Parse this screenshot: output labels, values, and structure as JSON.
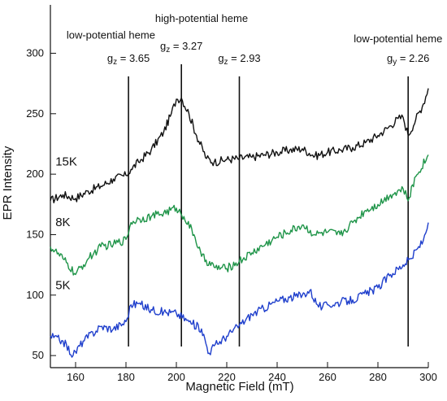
{
  "chart_data": {
    "type": "line",
    "xlabel": "Magnetic Field (mT)",
    "ylabel": "EPR Intensity",
    "xlim": [
      150,
      300
    ],
    "ylim": [
      40,
      340
    ],
    "xticks": [
      160,
      180,
      200,
      220,
      240,
      260,
      280,
      300
    ],
    "yticks": [
      50,
      100,
      150,
      200,
      250,
      300
    ],
    "grid": false,
    "legend": "none",
    "series": [
      {
        "name": "15K",
        "color": "#111111",
        "x": [
          150,
          155,
          160,
          165,
          170,
          175,
          180,
          182,
          185,
          190,
          195,
          198,
          200,
          202,
          205,
          208,
          212,
          215,
          220,
          225,
          230,
          235,
          240,
          245,
          250,
          255,
          260,
          265,
          270,
          275,
          280,
          285,
          288,
          290,
          292,
          295,
          298,
          300
        ],
        "y": [
          178,
          183,
          180,
          186,
          190,
          196,
          199,
          204,
          210,
          220,
          235,
          250,
          262,
          263,
          250,
          232,
          213,
          210,
          212,
          213,
          214,
          216,
          218,
          220,
          221,
          215,
          218,
          220,
          222,
          226,
          232,
          240,
          246,
          247,
          232,
          245,
          258,
          271
        ]
      },
      {
        "name": "8K",
        "color": "#1e9448",
        "x": [
          150,
          155,
          160,
          165,
          170,
          175,
          180,
          182,
          185,
          190,
          195,
          200,
          203,
          207,
          210,
          215,
          220,
          225,
          230,
          240,
          250,
          255,
          260,
          265,
          270,
          275,
          280,
          285,
          290,
          292,
          295,
          300
        ],
        "y": [
          140,
          130,
          117,
          130,
          140,
          142,
          146,
          160,
          163,
          165,
          168,
          172,
          165,
          150,
          132,
          123,
          122,
          128,
          135,
          148,
          158,
          150,
          152,
          150,
          160,
          170,
          175,
          183,
          188,
          178,
          198,
          216
        ]
      },
      {
        "name": "5K",
        "color": "#1f3fcc",
        "x": [
          150,
          155,
          159,
          163,
          170,
          175,
          180,
          182,
          185,
          190,
          195,
          200,
          205,
          210,
          213,
          215,
          220,
          225,
          230,
          240,
          245,
          250,
          253,
          256,
          258,
          260,
          270,
          280,
          285,
          290,
          293,
          298,
          300
        ],
        "y": [
          66,
          62,
          50,
          62,
          74,
          72,
          78,
          92,
          93,
          88,
          86,
          85,
          78,
          72,
          52,
          58,
          66,
          75,
          84,
          95,
          98,
          100,
          104,
          92,
          90,
          92,
          96,
          106,
          117,
          125,
          130,
          145,
          160
        ]
      }
    ],
    "series_labels": [
      {
        "text": "15K",
        "x": 152,
        "y": 207
      },
      {
        "text": "8K",
        "x": 152,
        "y": 157
      },
      {
        "text": "5K",
        "x": 152,
        "y": 105
      }
    ],
    "markers": [
      {
        "x": 181,
        "label": "g",
        "sub": "z",
        "value": " = 3.65",
        "label_y": 293
      },
      {
        "x": 202,
        "label": "g",
        "sub": "z",
        "value": " = 3.27",
        "label_y": 303
      },
      {
        "x": 225,
        "label": "g",
        "sub": "z",
        "value": " = 2.93",
        "label_y": 293
      },
      {
        "x": 292,
        "label": "g",
        "sub": "y",
        "value": " = 2.26",
        "label_y": 293
      }
    ],
    "annotations": [
      {
        "text": "low-potential heme",
        "x": 174,
        "y": 312
      },
      {
        "text": "high-potential heme",
        "x": 210,
        "y": 326
      },
      {
        "text": "low-potential heme",
        "x": 288,
        "y": 309
      }
    ]
  }
}
